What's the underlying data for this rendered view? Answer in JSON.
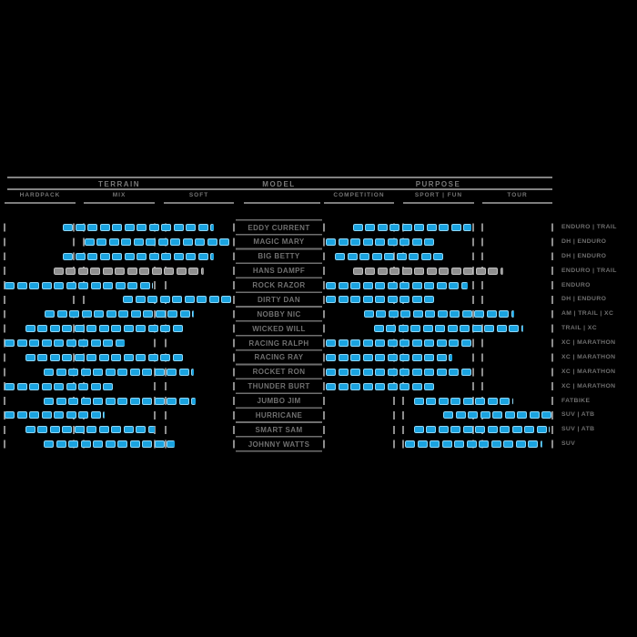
{
  "colors": {
    "background": "#000000",
    "grid_line": "#828282",
    "text": "#757575",
    "bar_blue": "#1aa3e0",
    "bar_blue_border": "#8ed6f6",
    "bar_gray": "#8f8f8f",
    "bar_gray_border": "#bfbfbf"
  },
  "header": {
    "terrain_title": "TERRAIN",
    "model_title": "MODEL",
    "purpose_title": "PURPOSE",
    "terrain_sub": [
      "HARDPACK",
      "MIX",
      "SOFT"
    ],
    "purpose_sub": [
      "COMPETITION",
      "SPORT | FUN",
      "TOUR"
    ]
  },
  "chart_data": {
    "type": "bar",
    "subtype": "horizontal-range-comparison",
    "title": "",
    "legend_position": "none",
    "grid": "dashed-vertical-guides",
    "axes": {
      "terrain": {
        "categories": [
          "HARDPACK",
          "MIX",
          "SOFT"
        ],
        "range": [
          0,
          1
        ]
      },
      "purpose": {
        "categories": [
          "COMPETITION",
          "SPORT | FUN",
          "TOUR"
        ],
        "range": [
          0,
          1
        ]
      }
    },
    "rows": [
      {
        "model": "EDDY CURRENT",
        "category": "ENDURO | TRAIL",
        "terrain": [
          0.254,
          0.913
        ],
        "purpose": [
          0.127,
          0.645
        ],
        "style": "blue"
      },
      {
        "model": "MAGIC MARY",
        "category": "DH | ENDURO",
        "terrain": [
          0.349,
          0.992
        ],
        "purpose": [
          0.008,
          0.482
        ],
        "style": "blue"
      },
      {
        "model": "BIG BETTY",
        "category": "DH | ENDURO",
        "terrain": [
          0.254,
          0.913
        ],
        "purpose": [
          0.048,
          0.522
        ],
        "style": "blue"
      },
      {
        "model": "HANS DAMPF",
        "category": "ENDURO | TRAIL",
        "terrain": [
          0.214,
          0.869
        ],
        "purpose": [
          0.127,
          0.785
        ],
        "style": "gray"
      },
      {
        "model": "ROCK RAZOR",
        "category": "ENDURO",
        "terrain": [
          0.0,
          0.647
        ],
        "purpose": [
          0.008,
          0.629
        ],
        "style": "blue"
      },
      {
        "model": "DIRTY DAN",
        "category": "DH | ENDURO",
        "terrain": [
          0.516,
          1.0
        ],
        "purpose": [
          0.008,
          0.482
        ],
        "style": "blue"
      },
      {
        "model": "NOBBY NIC",
        "category": "AM | TRAIL | XC",
        "terrain": [
          0.175,
          0.825
        ],
        "purpose": [
          0.175,
          0.833
        ],
        "style": "blue"
      },
      {
        "model": "WICKED WILL",
        "category": "TRAIL | XC",
        "terrain": [
          0.091,
          0.782
        ],
        "purpose": [
          0.219,
          0.873
        ],
        "style": "blue"
      },
      {
        "model": "RACING RALPH",
        "category": "XC | MARATHON",
        "terrain": [
          0.0,
          0.524
        ],
        "purpose": [
          0.008,
          0.645
        ],
        "style": "blue"
      },
      {
        "model": "RACING RAY",
        "category": "XC | MARATHON",
        "terrain": [
          0.091,
          0.786
        ],
        "purpose": [
          0.008,
          0.562
        ],
        "style": "blue"
      },
      {
        "model": "ROCKET RON",
        "category": "XC | MARATHON",
        "terrain": [
          0.171,
          0.825
        ],
        "purpose": [
          0.008,
          0.645
        ],
        "style": "blue"
      },
      {
        "model": "THUNDER BURT",
        "category": "XC | MARATHON",
        "terrain": [
          0.0,
          0.476
        ],
        "purpose": [
          0.008,
          0.482
        ],
        "style": "blue"
      },
      {
        "model": "JUMBO JIM",
        "category": "FATBIKE",
        "terrain": [
          0.171,
          0.833
        ],
        "purpose": [
          0.394,
          0.829
        ],
        "style": "blue"
      },
      {
        "model": "HURRICANE",
        "category": "SUV | ATB",
        "terrain": [
          0.0,
          0.437
        ],
        "purpose": [
          0.522,
          0.996
        ],
        "style": "blue"
      },
      {
        "model": "SMART SAM",
        "category": "SUV | ATB",
        "terrain": [
          0.091,
          0.655
        ],
        "purpose": [
          0.394,
          0.988
        ],
        "style": "blue"
      },
      {
        "model": "JOHNNY WATTS",
        "category": "SUV",
        "terrain": [
          0.171,
          0.742
        ],
        "purpose": [
          0.355,
          0.956
        ],
        "style": "blue"
      }
    ]
  }
}
